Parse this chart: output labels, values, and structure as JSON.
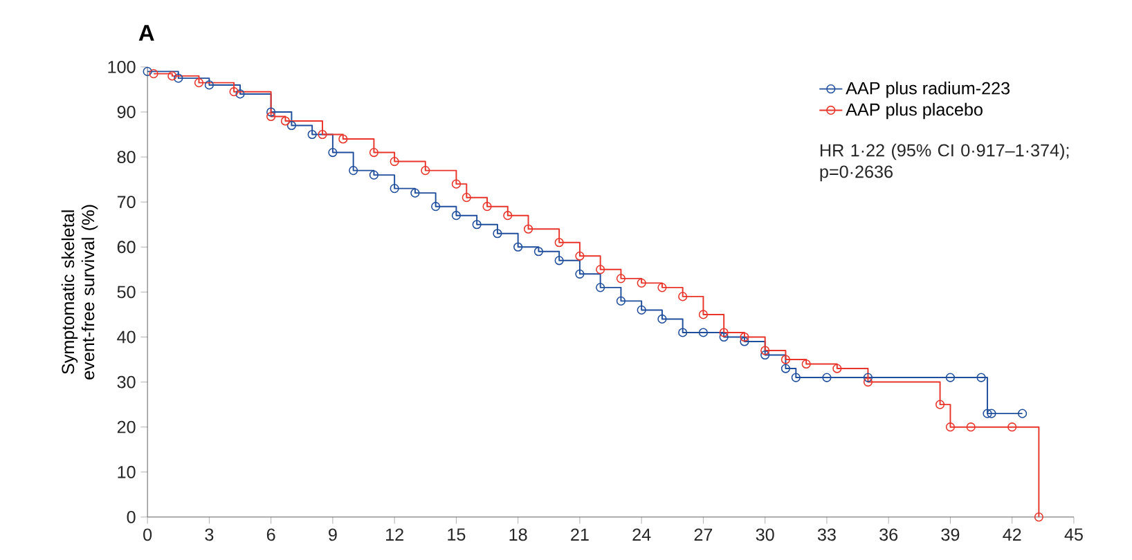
{
  "chart_data": {
    "type": "step",
    "title": "A",
    "ylabel": "Symptomatic skeletal event-free survival (%)",
    "marker": "circle",
    "legend": "top right",
    "grid": false,
    "xlim": [
      0,
      45
    ],
    "xticks": [
      0,
      3,
      6,
      9,
      12,
      15,
      18,
      21,
      24,
      27,
      30,
      33,
      36,
      39,
      42,
      45
    ],
    "ylim": [
      0,
      100
    ],
    "yticks": [
      0,
      10,
      20,
      30,
      40,
      50,
      60,
      70,
      80,
      90,
      100
    ],
    "annotations": [
      "HR 1·22 (95% CI 0·917–1·374); p=0·2636"
    ],
    "series": [
      {
        "name": "AAP plus radium-223",
        "color": "#1f4e9c",
        "x": [
          0,
          1.5,
          3,
          4.5,
          6,
          7,
          8,
          9,
          10,
          11,
          12,
          13,
          14,
          15,
          16,
          17,
          18,
          19,
          20,
          21,
          22,
          23,
          24,
          25,
          26,
          27,
          28,
          29,
          30,
          31,
          31.5,
          33,
          35,
          39,
          40.5,
          40.8,
          41,
          42.5
        ],
        "values": [
          99,
          97.5,
          96,
          94,
          90,
          87,
          85,
          81,
          77,
          76,
          73,
          72,
          69,
          67,
          65,
          63,
          60,
          59,
          57,
          54,
          51,
          48,
          46,
          44,
          41,
          41,
          40,
          39,
          36,
          33,
          31,
          31,
          31,
          31,
          31,
          23,
          23,
          23
        ]
      },
      {
        "name": "AAP plus placebo",
        "color": "#e8342a",
        "x": [
          0.3,
          1.2,
          2.5,
          4.2,
          6,
          6.7,
          8.5,
          9.5,
          11,
          12,
          13.5,
          15,
          15.5,
          16.5,
          17.5,
          18.5,
          20,
          21,
          22,
          23,
          24,
          25,
          26,
          27,
          28,
          29,
          30,
          31,
          32,
          33.5,
          35,
          38.5,
          39,
          40,
          42,
          43.3
        ],
        "values": [
          98.5,
          98,
          96.5,
          94.5,
          89,
          88,
          85,
          84,
          81,
          79,
          77,
          74,
          71,
          69,
          67,
          64,
          61,
          58,
          55,
          53,
          52,
          51,
          49,
          45,
          41,
          40,
          37,
          35,
          34,
          33,
          30,
          25,
          20,
          20,
          20,
          0
        ]
      }
    ]
  }
}
